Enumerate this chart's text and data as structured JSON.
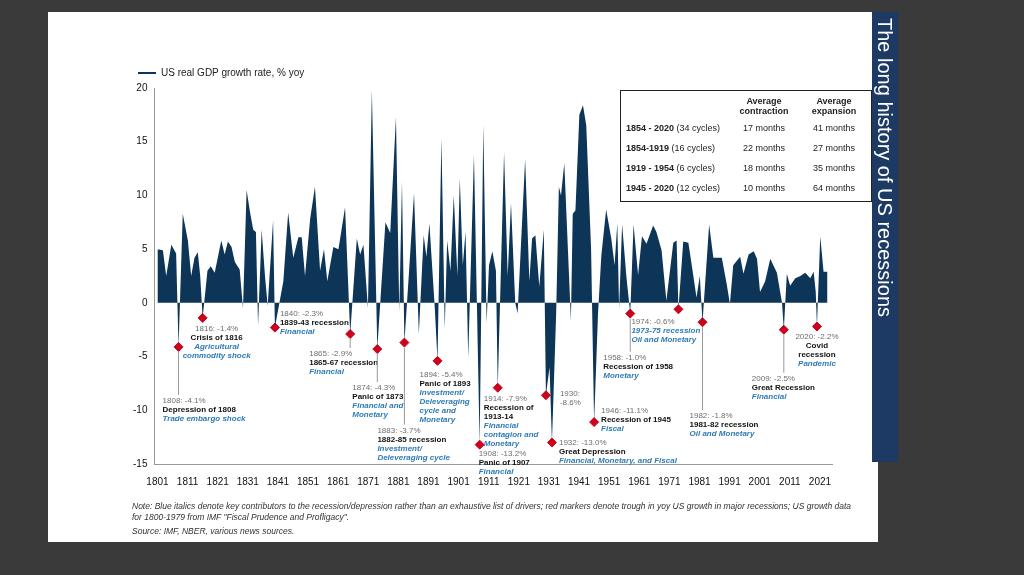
{
  "chart_data": [
    {
      "type": "area",
      "title": "The long history of US recessions",
      "legend": "top left",
      "xlim": [
        1800,
        2025
      ],
      "xticks": [
        1801,
        1811,
        1821,
        1831,
        1841,
        1851,
        1861,
        1871,
        1881,
        1891,
        1901,
        1911,
        1921,
        1931,
        1941,
        1951,
        1961,
        1971,
        1981,
        1991,
        2001,
        2011,
        2021
      ],
      "ylim": [
        -15,
        20
      ],
      "yticks": [
        -15,
        -10,
        -5,
        0,
        5,
        10,
        15,
        20
      ],
      "series": [
        {
          "name": "US real GDP growth rate, % yoy",
          "color": "#0c3558",
          "x": [
            1801,
            1802.8,
            1803.9,
            1805.6,
            1807.2,
            1808,
            1809.4,
            1811.1,
            1812.2,
            1813.3,
            1814.4,
            1815.2,
            1816,
            1817.6,
            1818.7,
            1820,
            1822.2,
            1823.3,
            1824.4,
            1825.6,
            1826.7,
            1828.3,
            1829.4,
            1830.6,
            1831.7,
            1832.8,
            1833.7,
            1834.4,
            1835.6,
            1836.7,
            1837.6,
            1839.4,
            1840,
            1842.8,
            1844.4,
            1846.1,
            1847.8,
            1848.9,
            1850,
            1851.7,
            1853.3,
            1855,
            1856.3,
            1857.4,
            1859.4,
            1861.1,
            1863.3,
            1865,
            1867.2,
            1868.3,
            1869.4,
            1870.9,
            1872.2,
            1874,
            1876.7,
            1878.3,
            1880.2,
            1881.3,
            1882.2,
            1883,
            1884.4,
            1886.2,
            1887.8,
            1889.4,
            1890.3,
            1891.3,
            1893.1,
            1894,
            1895.3,
            1896.4,
            1897.2,
            1898.3,
            1899.4,
            1900.6,
            1901.4,
            1902.4,
            1903.3,
            1904.2,
            1906.1,
            1908,
            1909.2,
            1910.3,
            1911.1,
            1912.2,
            1913.4,
            1914,
            1916.1,
            1917.3,
            1918.4,
            1919.8,
            1920.6,
            1923.1,
            1924.5,
            1925.4,
            1926.5,
            1927.8,
            1929.3,
            1930,
            1931.2,
            1932,
            1933.4,
            1934.3,
            1935,
            1936.1,
            1937.3,
            1938.3,
            1938.9,
            1939.8,
            1941.1,
            1942.3,
            1943.4,
            1945,
            1946,
            1947.3,
            1948.4,
            1950,
            1951.7,
            1952.8,
            1953.7,
            1954.3,
            1955.3,
            1956.7,
            1958,
            1959.1,
            1960.6,
            1961.9,
            1963.4,
            1965.6,
            1966.7,
            1968.4,
            1970,
            1972.3,
            1973.4,
            1974,
            1975.6,
            1977.3,
            1978.7,
            1980,
            1981.1,
            1982,
            1984.2,
            1985.6,
            1988.4,
            1990,
            1991.1,
            1992.2,
            1994.5,
            1995.6,
            1997.3,
            1999,
            2000.1,
            2001.1,
            2002.8,
            2004.5,
            2006.7,
            2008.4,
            2009,
            2010,
            2011.1,
            2012.8,
            2014.5,
            2016.1,
            2017.8,
            2018.9,
            2019.6,
            2020,
            2021.1,
            2022.2,
            2023.5
          ],
          "values": [
            5.0,
            4.9,
            2.5,
            5.4,
            4.6,
            -4.1,
            8.3,
            5.8,
            2.5,
            4.2,
            4.7,
            2.5,
            -1.4,
            3.0,
            3.4,
            2.8,
            5.8,
            4.5,
            5.7,
            5.2,
            3.8,
            3.1,
            -0.5,
            10.5,
            8.5,
            6.8,
            6.6,
            -2.1,
            6.8,
            2.5,
            -0.3,
            7.7,
            -2.3,
            2.0,
            8.4,
            4.2,
            6.1,
            6.1,
            2.5,
            7.8,
            10.8,
            3.0,
            5.0,
            2.0,
            5.2,
            5.0,
            8.9,
            -2.9,
            6.0,
            4.5,
            5.4,
            -0.5,
            19.8,
            -4.3,
            7.5,
            6.5,
            17.3,
            -0.8,
            11.3,
            -3.7,
            2.3,
            10.2,
            -2.9,
            6.3,
            4.3,
            7.4,
            -0.5,
            -5.4,
            15.4,
            -2.4,
            5.8,
            3.0,
            10.0,
            2.5,
            11.6,
            3.5,
            6.6,
            -5.1,
            13.8,
            -13.2,
            16.6,
            -1.9,
            3.5,
            4.8,
            3.0,
            -7.9,
            14.0,
            2.5,
            9.3,
            0,
            -1.0,
            13.4,
            2.0,
            6.0,
            6.3,
            1.5,
            6.8,
            -8.6,
            -6.0,
            -13.0,
            -1.0,
            10.8,
            10.0,
            13.0,
            5.0,
            -1.7,
            8.3,
            8.6,
            17.5,
            18.4,
            16.5,
            5.0,
            -11.1,
            -1.0,
            4.4,
            8.7,
            6.0,
            3.5,
            7.4,
            -0.5,
            7.3,
            2.5,
            -1.0,
            7.3,
            2.6,
            6.2,
            5.5,
            7.2,
            6.6,
            4.9,
            0.2,
            5.6,
            5.8,
            -0.6,
            5.7,
            5.6,
            3.0,
            0.5,
            2.5,
            -1.8,
            7.3,
            4.2,
            4.2,
            1.8,
            -0.1,
            3.5,
            4.3,
            2.7,
            4.5,
            4.8,
            4.1,
            1.0,
            2.0,
            4.1,
            2.8,
            0,
            -2.5,
            2.7,
            1.6,
            2.3,
            2.5,
            2.8,
            2.3,
            2.9,
            1.0,
            -2.2,
            6.2,
            2.9,
            2.9
          ]
        },
        {
          "type": "scatter",
          "marker": "diamond",
          "color": "#d0021b",
          "x": [
            1808,
            1816,
            1840,
            1865,
            1874,
            1883,
            1894,
            1908,
            1914,
            1930,
            1932,
            1946,
            1958,
            1974,
            1982,
            2009,
            2020
          ],
          "values": [
            -4.1,
            -1.4,
            -2.3,
            -2.9,
            -4.3,
            -3.7,
            -5.4,
            -13.2,
            -7.9,
            -8.6,
            -13.0,
            -11.1,
            -1.0,
            -0.6,
            -1.8,
            -2.5,
            -2.2
          ]
        }
      ],
      "annotations": [
        "Average contraction",
        "Average expansion",
        "1854 - 2020 (34 cycles)",
        "17 months",
        "41 months",
        "1854-1919 (16 cycles)",
        "22 months",
        "27 months",
        "1919 - 1954 (6 cycles)",
        "18 months",
        "35 months",
        "1945 - 2020 (12 cycles)",
        "10 months",
        "64 months",
        {
          "text": "1808: -4.1%\nDepression of 1808\nTrade embargo shock",
          "x": 1808,
          "y": -4.1
        },
        {
          "text": "1816: -1.4%\nCrisis of 1816\nAgricultural commodity shock",
          "x": 1816,
          "y": -1.4
        },
        {
          "text": "1840: -2.3%\n1839-43 recession\nFinancial",
          "x": 1840,
          "y": -2.3
        },
        {
          "text": "1865: -2.9%\n1865-67 recession\nFinancial",
          "x": 1865,
          "y": -2.9
        },
        {
          "text": "1874: -4.3%\nPanic of 1873\nFinancial and Monetary",
          "x": 1874,
          "y": -4.3
        },
        {
          "text": "1883: -3.7%\n1882-85 recession\nInvestment/ Deleveraging cycle",
          "x": 1883,
          "y": -3.7
        },
        {
          "text": "1894: -5.4%\nPanic of 1893\nInvestment/ Deleveraging cycle and Monetary",
          "x": 1894,
          "y": -5.4
        },
        {
          "text": "1908: -13.2%\nPanic of 1907\nFinancial",
          "x": 1908,
          "y": -13.2
        },
        {
          "text": "1914: -7.9%\nRecession of 1913-14\nFinancial contagion and Monetary",
          "x": 1914,
          "y": -7.9
        },
        {
          "text": "1930: -8.6%",
          "x": 1930,
          "y": -8.6
        },
        {
          "text": "1932: -13.0%\nGreat Depression\nFinancial, Monetary, and Fiscal",
          "x": 1932,
          "y": -13.0
        },
        {
          "text": "1946: -11.1%\nRecession of 1945\nFiscal",
          "x": 1946,
          "y": -11.1
        },
        {
          "text": "1958: -1.0%\nRecession of 1958\nMonetary",
          "x": 1958,
          "y": -1.0
        },
        {
          "text": "1974: -0.6%\n1973-75 recession\nOil and Monetary",
          "x": 1974,
          "y": -0.6
        },
        {
          "text": "1982: -1.8%\n1981-82 recession\nOil and Monetary",
          "x": 1982,
          "y": -1.8
        },
        {
          "text": "2009: -2.5%\nGreat Recession\nFinancial",
          "x": 2009,
          "y": -2.5
        },
        {
          "text": "2020: -2.2%\nCovid recession\nPandemic",
          "x": 2020,
          "y": -2.2
        },
        "Note: Blue italics denote key contributors to the recession/depression rather than an exhaustive list of drivers; red markers denote trough in yoy US growth in major recessions; US growth data for 1800-1979 from IMF \"Fiscal Prudence and Profligacy\".",
        "Source: IMF, NBER, various news sources."
      ]
    }
  ]
}
